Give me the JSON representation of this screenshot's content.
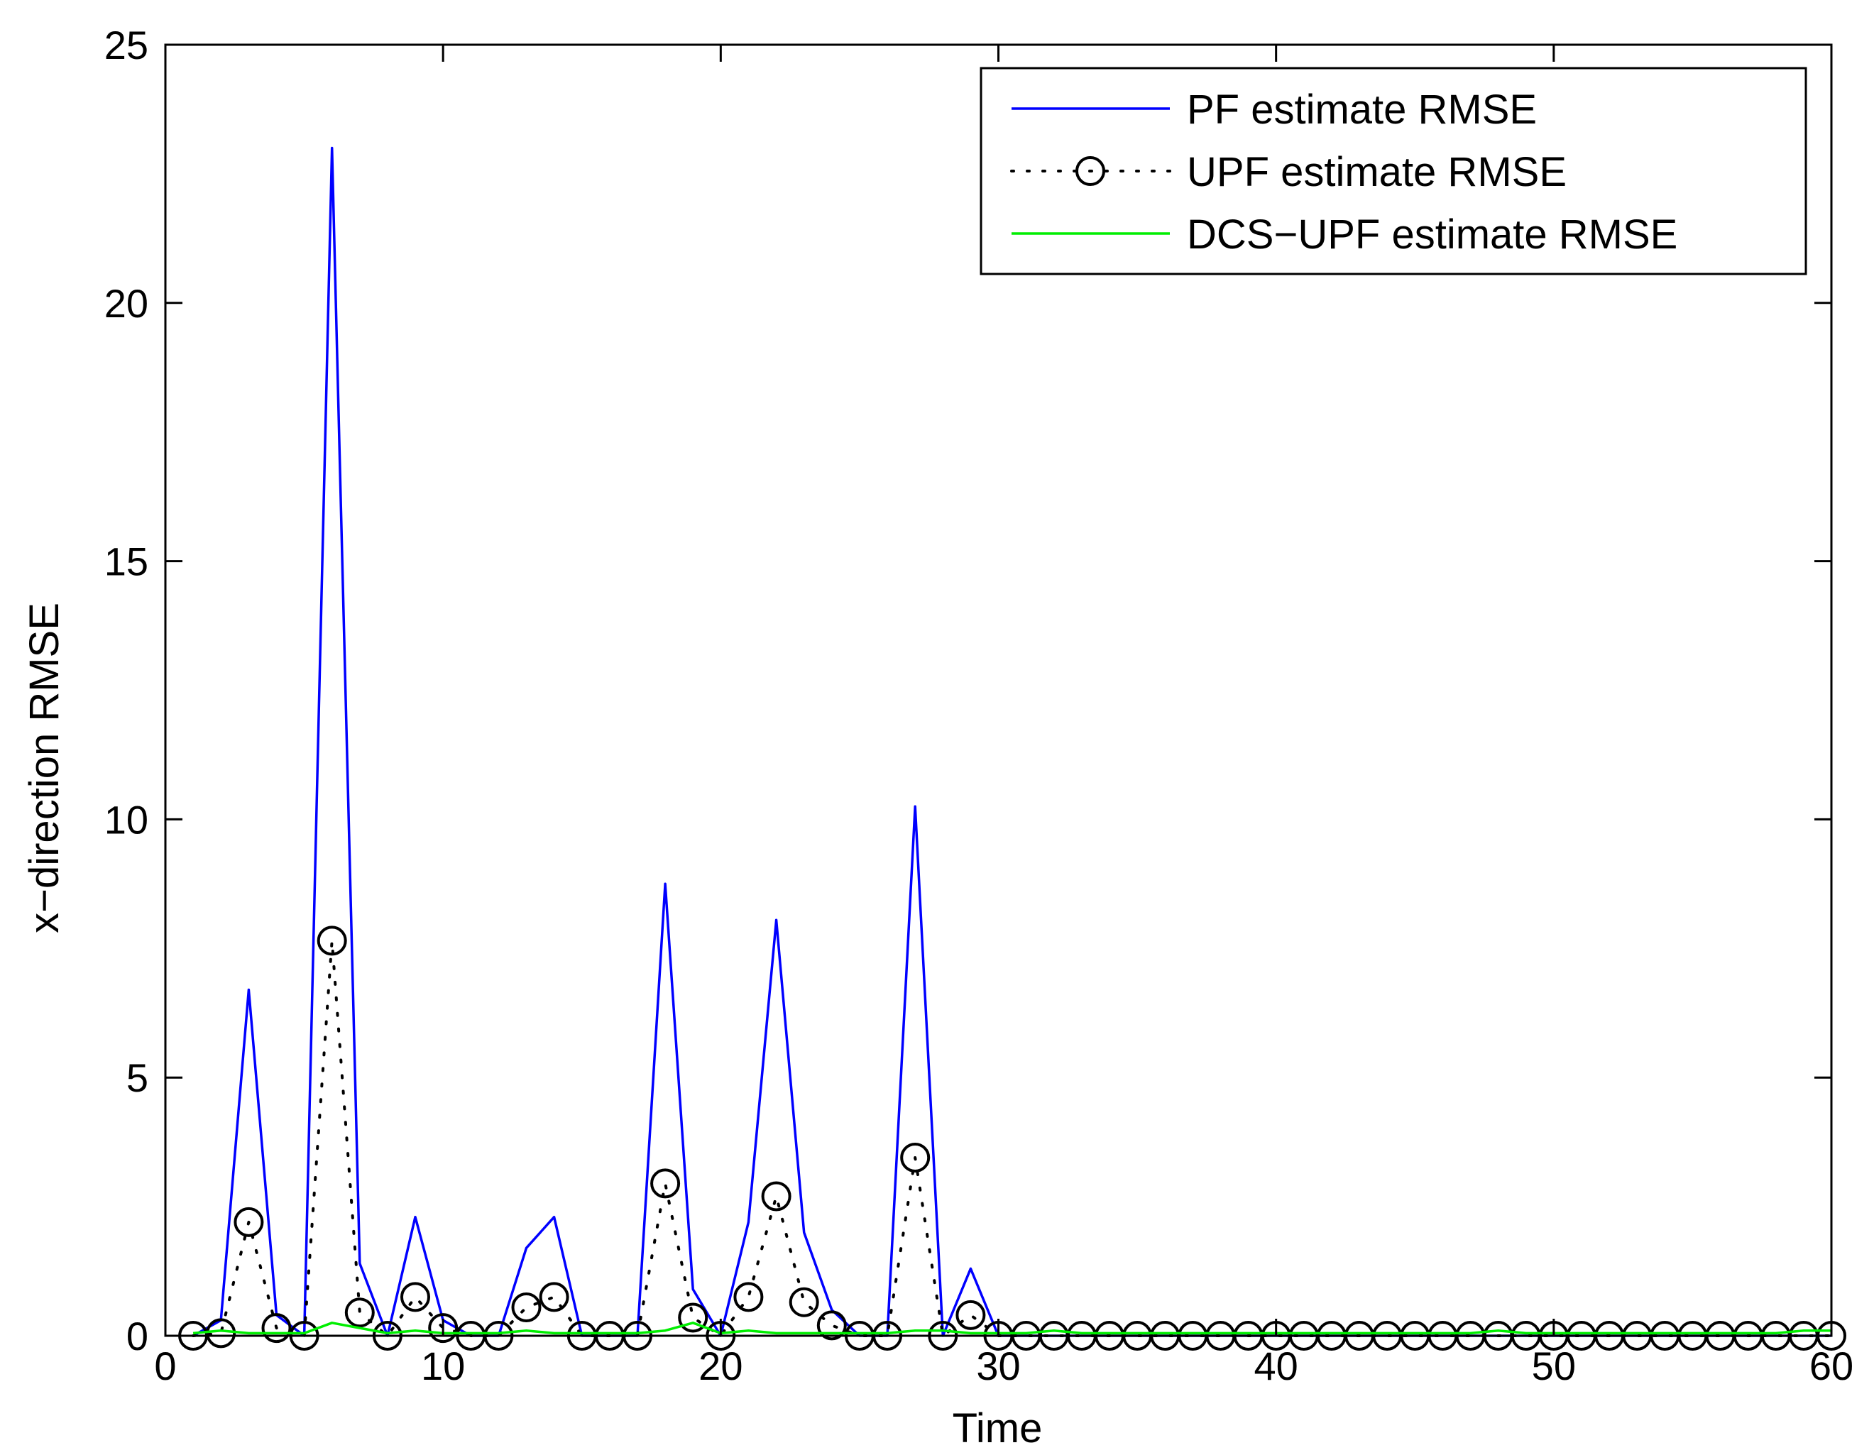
{
  "chart_data": {
    "type": "line",
    "xlabel": "Time",
    "ylabel": "x−direction RMSE",
    "xlim": [
      0,
      60
    ],
    "ylim": [
      0,
      25
    ],
    "xticks": [
      "0",
      "10",
      "20",
      "30",
      "40",
      "50",
      "60"
    ],
    "yticks": [
      "0",
      "5",
      "10",
      "15",
      "20",
      "25"
    ],
    "grid": false,
    "legend_position": "top-right",
    "x": [
      1,
      2,
      3,
      4,
      5,
      6,
      7,
      8,
      9,
      10,
      11,
      12,
      13,
      14,
      15,
      16,
      17,
      18,
      19,
      20,
      21,
      22,
      23,
      24,
      25,
      26,
      27,
      28,
      29,
      30,
      31,
      32,
      33,
      34,
      35,
      36,
      37,
      38,
      39,
      40,
      41,
      42,
      43,
      44,
      45,
      46,
      47,
      48,
      49,
      50,
      51,
      52,
      53,
      54,
      55,
      56,
      57,
      58,
      59,
      60
    ],
    "series": [
      {
        "name": "PF estimate RMSE",
        "color": "#0000ff",
        "line_style": "solid",
        "marker": "none",
        "values": [
          0,
          0.3,
          6.7,
          0.4,
          0,
          23,
          1.4,
          0,
          2.3,
          0.3,
          0,
          0,
          1.7,
          2.3,
          0,
          0,
          0,
          8.75,
          0.9,
          0,
          2.2,
          8.05,
          2.0,
          0.5,
          0,
          0,
          10.25,
          0,
          1.3,
          0,
          0,
          0,
          0,
          0,
          0,
          0,
          0,
          0,
          0,
          0,
          0,
          0,
          0,
          0,
          0,
          0,
          0,
          0,
          0,
          0,
          0,
          0,
          0,
          0,
          0,
          0,
          0,
          0,
          0,
          0
        ]
      },
      {
        "name": "UPF estimate RMSE",
        "color": "#000000",
        "line_style": "dotted",
        "marker": "circle",
        "values": [
          0,
          0.05,
          2.2,
          0.15,
          0,
          7.65,
          0.45,
          0,
          0.75,
          0.15,
          0,
          0,
          0.55,
          0.75,
          0,
          0,
          0,
          2.95,
          0.35,
          0,
          0.75,
          2.7,
          0.65,
          0.2,
          0,
          0,
          3.45,
          0,
          0.4,
          0,
          0,
          0,
          0,
          0,
          0,
          0,
          0,
          0,
          0,
          0,
          0,
          0,
          0,
          0,
          0,
          0,
          0,
          0,
          0,
          0,
          0,
          0,
          0,
          0,
          0,
          0,
          0,
          0,
          0,
          0
        ]
      },
      {
        "name": "DCS−UPF estimate RMSE",
        "color": "#00ee00",
        "line_style": "solid",
        "marker": "none",
        "values": [
          0.05,
          0.1,
          0.05,
          0.05,
          0.05,
          0.25,
          0.15,
          0.05,
          0.1,
          0.05,
          0.05,
          0.05,
          0.1,
          0.05,
          0.05,
          0.05,
          0.05,
          0.1,
          0.25,
          0.05,
          0.1,
          0.05,
          0.05,
          0.05,
          0.05,
          0.05,
          0.1,
          0.1,
          0.05,
          0.05,
          0.05,
          0.1,
          0.05,
          0.05,
          0.05,
          0.05,
          0.05,
          0.05,
          0.05,
          0.05,
          0.05,
          0.05,
          0.05,
          0.05,
          0.05,
          0.05,
          0.05,
          0.1,
          0.05,
          0.05,
          0.05,
          0.05,
          0.05,
          0.05,
          0.05,
          0.05,
          0.05,
          0.05,
          0.1,
          0.1
        ]
      }
    ]
  }
}
